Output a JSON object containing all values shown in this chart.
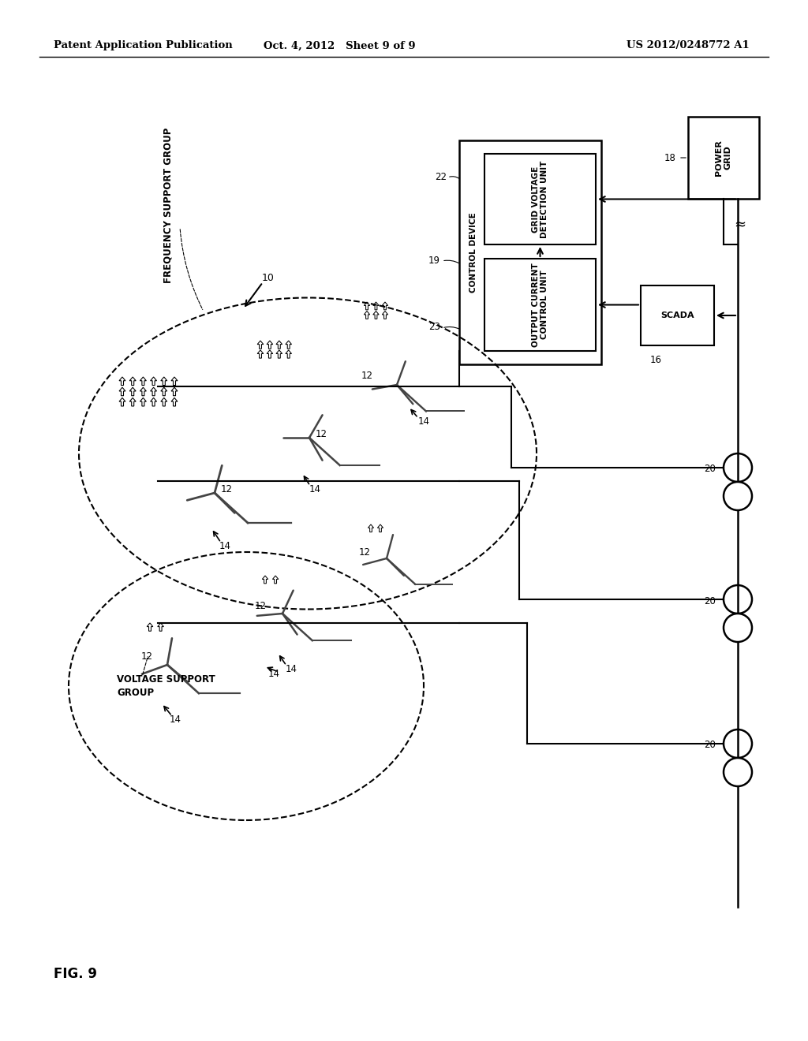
{
  "bg_color": "#ffffff",
  "header_left": "Patent Application Publication",
  "header_center": "Oct. 4, 2012   Sheet 9 of 9",
  "header_right": "US 2012/0248772 A1",
  "fig_label": "FIG. 9",
  "line_color": "#000000"
}
